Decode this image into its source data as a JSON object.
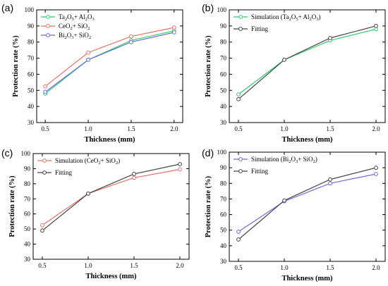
{
  "chart_data": [
    {
      "type": "line",
      "panel_label": "(a)",
      "x": [
        0.5,
        1.0,
        1.5,
        2.0
      ],
      "xticks": [
        "0.5",
        "1.0",
        "1.5",
        "2.0"
      ],
      "yticks": [
        "30",
        "40",
        "50",
        "60",
        "70",
        "80",
        "90",
        "100"
      ],
      "xlim": [
        0.4,
        2.1
      ],
      "ylim": [
        30,
        100
      ],
      "xlabel": "Thickness (mm)",
      "ylabel": "Protection rate (%)",
      "legend_position": "top-left",
      "series": [
        {
          "name": "Ta2O5+ Al2O3",
          "name_parts": [
            [
              "Ta",
              ""
            ],
            [
              "2",
              "sub"
            ],
            [
              "O",
              ""
            ],
            [
              "5",
              "sub"
            ],
            [
              "+ Al",
              ""
            ],
            [
              "2",
              "sub"
            ],
            [
              "O",
              ""
            ],
            [
              "3",
              "sub"
            ]
          ],
          "color": "#2ecc71",
          "values": [
            48,
            69,
            81,
            87
          ]
        },
        {
          "name": "CeO2+ SiO2",
          "name_parts": [
            [
              "CeO",
              ""
            ],
            [
              "2",
              "sub"
            ],
            [
              "+ SiO",
              ""
            ],
            [
              "2",
              "sub"
            ]
          ],
          "color": "#e5736b",
          "values": [
            52.5,
            73.5,
            83.5,
            89
          ]
        },
        {
          "name": "Bi2O3+ SiO2",
          "name_parts": [
            [
              "Bi",
              ""
            ],
            [
              "2",
              "sub"
            ],
            [
              "O",
              ""
            ],
            [
              "3",
              "sub"
            ],
            [
              "+ SiO",
              ""
            ],
            [
              "2",
              "sub"
            ]
          ],
          "color": "#6b6bd9",
          "values": [
            49,
            69,
            80,
            86
          ]
        }
      ]
    },
    {
      "type": "line",
      "panel_label": "(b)",
      "x": [
        0.5,
        1.0,
        1.5,
        2.0
      ],
      "xticks": [
        "0.5",
        "1.0",
        "1.5",
        "2.0"
      ],
      "yticks": [
        "30",
        "40",
        "50",
        "60",
        "70",
        "80",
        "90",
        "100"
      ],
      "xlim": [
        0.4,
        2.1
      ],
      "ylim": [
        30,
        100
      ],
      "xlabel": "Thickness (mm)",
      "ylabel": "Protection rate (%)",
      "legend_position": "top-left",
      "series": [
        {
          "name": "Simulation (Ta2O5+ Al2O3)",
          "name_parts": [
            [
              "Simulation (Ta",
              ""
            ],
            [
              "2",
              "sub"
            ],
            [
              "O",
              ""
            ],
            [
              "5",
              "sub"
            ],
            [
              "+ Al",
              ""
            ],
            [
              "2",
              "sub"
            ],
            [
              "O",
              ""
            ],
            [
              "3",
              "sub"
            ],
            [
              ")",
              ""
            ]
          ],
          "color": "#2ecc71",
          "values": [
            47.5,
            69,
            81,
            88
          ]
        },
        {
          "name": "Fitting",
          "name_parts": [
            [
              "Fitting",
              ""
            ]
          ],
          "color": "#444444",
          "values": [
            44.5,
            69,
            82.5,
            90
          ]
        }
      ]
    },
    {
      "type": "line",
      "panel_label": "(c)",
      "x": [
        0.5,
        1.0,
        1.5,
        2.0
      ],
      "xticks": [
        "0.5",
        "1.0",
        "1.5",
        "2.0"
      ],
      "yticks": [
        "30",
        "40",
        "50",
        "60",
        "70",
        "80",
        "90",
        "100"
      ],
      "xlim": [
        0.4,
        2.1
      ],
      "ylim": [
        30,
        100
      ],
      "xlabel": "Thickness (mm)",
      "ylabel": "Protection rate (%)",
      "legend_position": "top-left",
      "series": [
        {
          "name": "Simulation (CeO2+ SiO2)",
          "name_parts": [
            [
              "Simulation (CeO",
              ""
            ],
            [
              "2",
              "sub"
            ],
            [
              "+ SiO",
              ""
            ],
            [
              "2",
              "sub"
            ],
            [
              ")",
              ""
            ]
          ],
          "color": "#e5736b",
          "values": [
            52.5,
            73.5,
            84,
            89.5
          ]
        },
        {
          "name": "Fitting",
          "name_parts": [
            [
              "Fitting",
              ""
            ]
          ],
          "color": "#444444",
          "values": [
            49,
            73.5,
            86.5,
            93
          ]
        }
      ]
    },
    {
      "type": "line",
      "panel_label": "(d)",
      "x": [
        0.5,
        1.0,
        1.5,
        2.0
      ],
      "xticks": [
        "0.5",
        "1.0",
        "1.5",
        "2.0"
      ],
      "yticks": [
        "30",
        "40",
        "50",
        "60",
        "70",
        "80",
        "90",
        "100"
      ],
      "xlim": [
        0.4,
        2.1
      ],
      "ylim": [
        30,
        100
      ],
      "xlabel": "Thickness (mm)",
      "ylabel": "Protection rate (%)",
      "legend_position": "top-left",
      "series": [
        {
          "name": "Simulation (Bi2O3+ SiO2)",
          "name_parts": [
            [
              "Simulation (Bi",
              ""
            ],
            [
              "2",
              "sub"
            ],
            [
              "O",
              ""
            ],
            [
              "3",
              "sub"
            ],
            [
              "+ SiO",
              ""
            ],
            [
              "2",
              "sub"
            ],
            [
              ")",
              ""
            ]
          ],
          "color": "#6b6bd9",
          "values": [
            49,
            68.5,
            80,
            86
          ]
        },
        {
          "name": "Fitting",
          "name_parts": [
            [
              "Fitting",
              ""
            ]
          ],
          "color": "#444444",
          "values": [
            44,
            69,
            82.5,
            90
          ]
        }
      ]
    }
  ]
}
